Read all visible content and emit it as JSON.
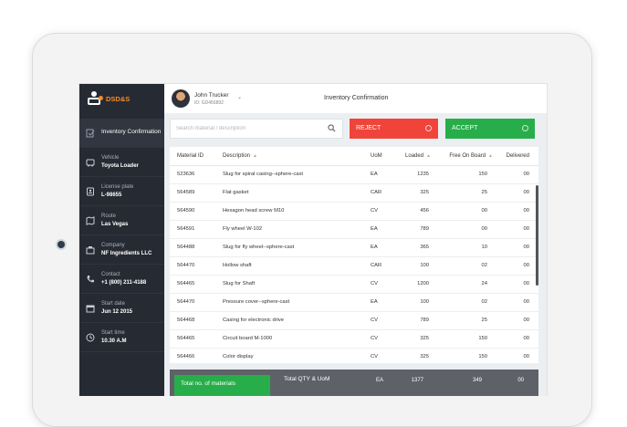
{
  "brand": {
    "name": "DSD&S"
  },
  "sidebar": {
    "items": [
      {
        "label": "Inventory Confirmation",
        "value": "",
        "icon": "inventory-icon"
      },
      {
        "label": "Vehicle",
        "value": "Toyota Loader",
        "icon": "truck-icon"
      },
      {
        "label": "License plate",
        "value": "L-98655",
        "icon": "id-card-icon"
      },
      {
        "label": "Route",
        "value": "Las Vegas",
        "icon": "map-icon"
      },
      {
        "label": "Company",
        "value": "NF Ingredients LLC",
        "icon": "building-icon"
      },
      {
        "label": "Contact",
        "value": "+1 (800) 211-4188",
        "icon": "phone-icon"
      },
      {
        "label": "Start date",
        "value": "Jun 12 2015",
        "icon": "calendar-icon"
      },
      {
        "label": "Start time",
        "value": "10.30 A.M",
        "icon": "clock-icon"
      }
    ]
  },
  "header": {
    "user_name": "John Trucker",
    "user_id": "ID: GD456892",
    "title": "Inventory Confirmation"
  },
  "search": {
    "placeholder": "Search material / description",
    "value": ""
  },
  "actions": {
    "reject_label": "REJECT",
    "accept_label": "ACCEPT"
  },
  "colors": {
    "sidebar": "#262a33",
    "brand": "#f28c28",
    "reject": "#f0443a",
    "accept": "#27ae4a",
    "footer": "#5e6168"
  },
  "table": {
    "columns": [
      "Material ID",
      "Description",
      "UoM",
      "Loaded",
      "Free On Board",
      "Delivered"
    ],
    "rows": [
      {
        "id": "523636",
        "desc": "Slug for spiral casing--sphere-cast",
        "uom": "EA",
        "loaded": "1235",
        "free": "150",
        "delivered": "00"
      },
      {
        "id": "564589",
        "desc": "Flat gasket",
        "uom": "CAR",
        "loaded": "325",
        "free": "25",
        "delivered": "00"
      },
      {
        "id": "564590",
        "desc": "Hexagon head screw M10",
        "uom": "CV",
        "loaded": "456",
        "free": "00",
        "delivered": "00"
      },
      {
        "id": "564591",
        "desc": "Fly wheel W-102",
        "uom": "EA",
        "loaded": "789",
        "free": "00",
        "delivered": "00"
      },
      {
        "id": "564488",
        "desc": "Slug for fly wheel--sphere-cast",
        "uom": "EA",
        "loaded": "365",
        "free": "10",
        "delivered": "00"
      },
      {
        "id": "564470",
        "desc": "Hollow shaft",
        "uom": "CAR",
        "loaded": "100",
        "free": "02",
        "delivered": "00"
      },
      {
        "id": "564465",
        "desc": "Slug for Shaft",
        "uom": "CV",
        "loaded": "1200",
        "free": "24",
        "delivered": "00"
      },
      {
        "id": "564470",
        "desc": "Pressure cover--sphere-cast",
        "uom": "EA",
        "loaded": "100",
        "free": "02",
        "delivered": "00"
      },
      {
        "id": "564468",
        "desc": "Casing for electronic drive",
        "uom": "CV",
        "loaded": "789",
        "free": "25",
        "delivered": "00"
      },
      {
        "id": "564465",
        "desc": "Circuit board M-1000",
        "uom": "CV",
        "loaded": "325",
        "free": "150",
        "delivered": "00"
      },
      {
        "id": "564466",
        "desc": "Color display",
        "uom": "CV",
        "loaded": "325",
        "free": "150",
        "delivered": "00"
      }
    ]
  },
  "footer": {
    "total_materials_label": "Total no. of materials",
    "total_qty_label": "Total QTY & UoM",
    "uom": "EA",
    "loaded": "1377",
    "free": "349",
    "delivered": "00"
  }
}
